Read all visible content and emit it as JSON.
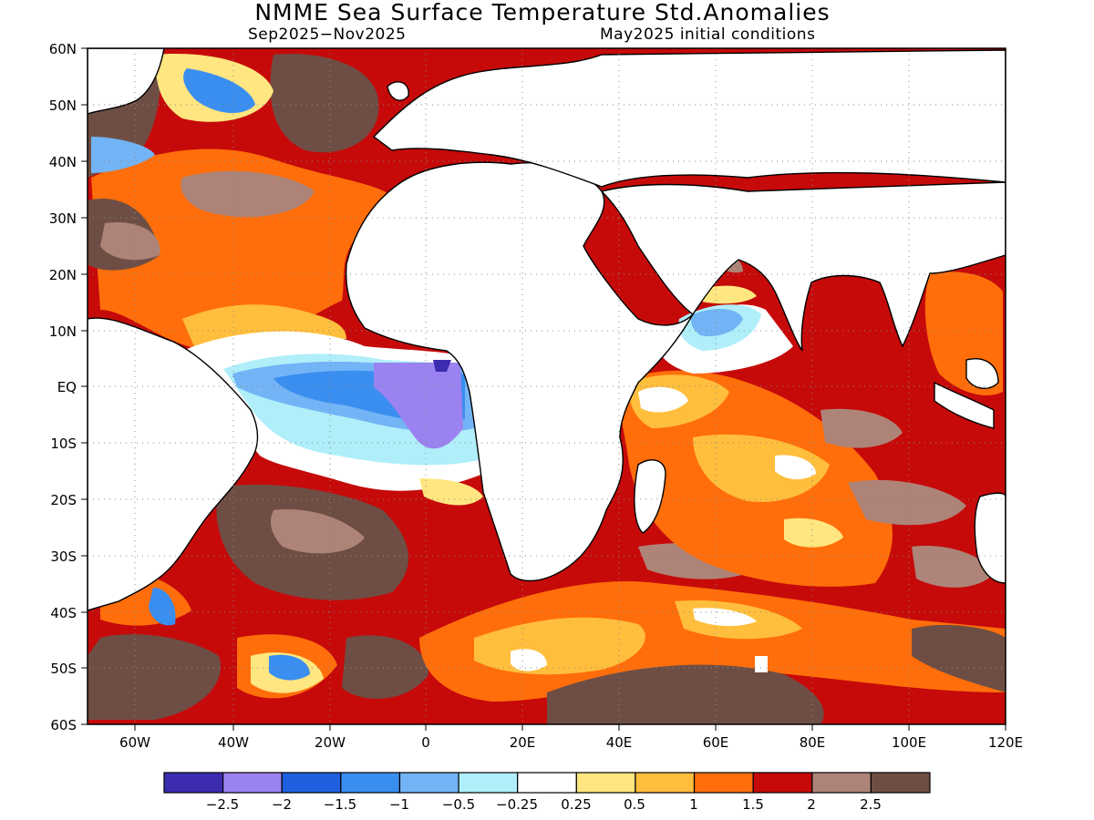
{
  "title": "NMME Sea Surface Temperature Std.Anomalies",
  "subtitle_left": "Sep2025−Nov2025",
  "subtitle_right": "May2025 initial conditions",
  "lat_labels": [
    "60N",
    "50N",
    "40N",
    "30N",
    "20N",
    "10N",
    "EQ",
    "10S",
    "20S",
    "30S",
    "40S",
    "50S",
    "60S"
  ],
  "lon_labels": [
    "60W",
    "40W",
    "20W",
    "0",
    "20E",
    "40E",
    "60E",
    "80E",
    "100E",
    "120E"
  ],
  "colorbar": {
    "colors": [
      "#3c2cb0",
      "#9a82f0",
      "#1f60e0",
      "#3a8ef0",
      "#72b4f5",
      "#b0eefa",
      "#ffffff",
      "#ffe680",
      "#ffbe3c",
      "#ff6e0a",
      "#c60a0a",
      "#ae8478",
      "#6e4e44"
    ],
    "labels": [
      "−2.5",
      "−2",
      "−1.5",
      "−1",
      "−0.5",
      "−0.25",
      "0.25",
      "0.5",
      "1",
      "1.5",
      "2",
      "2.5"
    ]
  }
}
